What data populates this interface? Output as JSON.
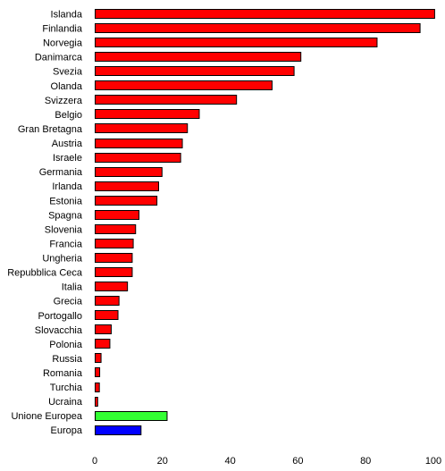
{
  "chart_data": {
    "type": "bar",
    "orientation": "horizontal",
    "title": "",
    "xlabel": "",
    "ylabel": "",
    "xlim": [
      0,
      100
    ],
    "xticks": [
      0,
      20,
      40,
      60,
      80,
      100
    ],
    "grid": false,
    "legend": "none",
    "categories": [
      "Islanda",
      "Finlandia",
      "Norvegia",
      "Danimarca",
      "Svezia",
      "Olanda",
      "Svizzera",
      "Belgio",
      "Gran Bretagna",
      "Austria",
      "Israele",
      "Germania",
      "Irlanda",
      "Estonia",
      "Spagna",
      "Slovenia",
      "Francia",
      "Ungheria",
      "Repubblica Ceca",
      "Italia",
      "Grecia",
      "Portogallo",
      "Slovacchia",
      "Polonia",
      "Russia",
      "Romania",
      "Turchia",
      "Ucraina",
      "Unione Europea",
      "Europa"
    ],
    "values": [
      100.5,
      96.2,
      83.5,
      61.0,
      59.0,
      52.5,
      42.0,
      31.0,
      27.5,
      26.0,
      25.5,
      20.0,
      19.0,
      18.5,
      13.2,
      12.2,
      11.5,
      11.2,
      11.2,
      9.8,
      7.3,
      7.0,
      5.0,
      4.6,
      2.0,
      1.6,
      1.5,
      1.0,
      21.5,
      13.8
    ],
    "colors": [
      "#ff0000",
      "#ff0000",
      "#ff0000",
      "#ff0000",
      "#ff0000",
      "#ff0000",
      "#ff0000",
      "#ff0000",
      "#ff0000",
      "#ff0000",
      "#ff0000",
      "#ff0000",
      "#ff0000",
      "#ff0000",
      "#ff0000",
      "#ff0000",
      "#ff0000",
      "#ff0000",
      "#ff0000",
      "#ff0000",
      "#ff0000",
      "#ff0000",
      "#ff0000",
      "#ff0000",
      "#ff0000",
      "#ff0000",
      "#ff0000",
      "#ff0000",
      "#33ff33",
      "#0000ff"
    ]
  }
}
